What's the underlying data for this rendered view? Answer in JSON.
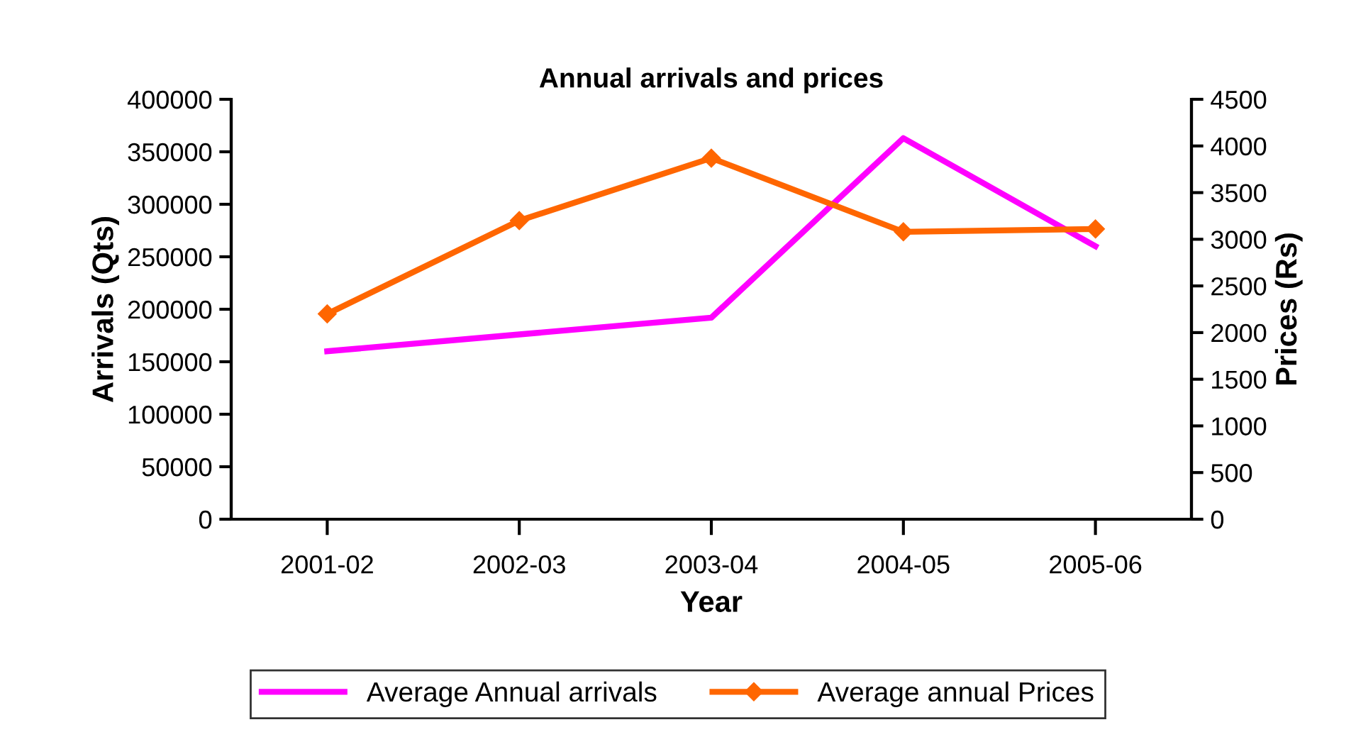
{
  "chart_data": {
    "type": "line",
    "title": "Annual arrivals and prices",
    "xlabel": "Year",
    "ylabel": "Arrivals (Qts)",
    "y2label": "Prices (Rs)",
    "categories": [
      "2001-02",
      "2002-03",
      "2003-04",
      "2004-05",
      "2005-06"
    ],
    "series": [
      {
        "name": "Average Annual arrivals",
        "color": "#ff00ff",
        "values": [
          160000,
          176000,
          192000,
          363000,
          260000
        ],
        "marker": "none"
      },
      {
        "name": "Average annual Prices",
        "color": "#ff6600",
        "values": [
          2200,
          3200,
          3870,
          3080,
          3110
        ],
        "axis": "y2",
        "marker": "diamond"
      }
    ],
    "ylim": [
      0,
      400000
    ],
    "yticks": [
      0,
      50000,
      100000,
      150000,
      200000,
      250000,
      300000,
      350000,
      400000
    ],
    "y2lim": [
      0,
      4500
    ],
    "y2ticks": [
      0,
      500,
      1000,
      1500,
      2000,
      2500,
      3000,
      3500,
      4000,
      4500
    ],
    "grid": false,
    "legend": "bottom"
  }
}
